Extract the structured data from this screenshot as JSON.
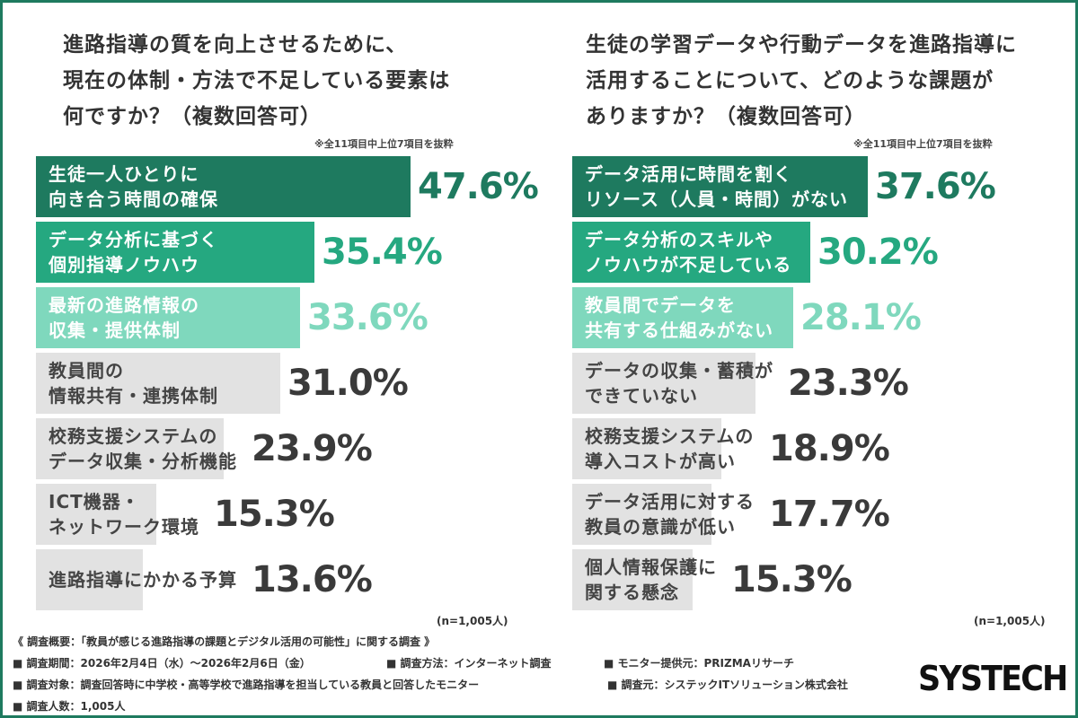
{
  "colors": {
    "border": "#1e7a5f",
    "bar1": "#1e7a5f",
    "bar2": "#25a880",
    "bar3": "#7fd8bd",
    "bar_rest": "#e2e2e2",
    "val1": "#1e7a5f",
    "val2": "#25a880",
    "val3": "#7fd8bd",
    "val_rest": "#3a3a3a",
    "label_light": "#ffffff",
    "label_dark": "#444444"
  },
  "chart_data": [
    {
      "type": "bar",
      "orientation": "horizontal",
      "title": "進路指導の質を向上させるために、\n現在の体制・方法で不足している要素は\n何ですか？（複数回答可）",
      "note": "※全11項目中上位7項目を抜粋",
      "categories": [
        "生徒一人ひとりに\n向き合う時間の確保",
        "データ分析に基づく\n個別指導ノウハウ",
        "最新の進路情報の\n収集・提供体制",
        "教員間の\n情報共有・連携体制",
        "校務支援システムの\nデータ収集・分析機能",
        "ICT機器・\nネットワーク環境",
        "進路指導にかかる予算"
      ],
      "values": [
        47.6,
        35.4,
        33.6,
        31.0,
        23.9,
        15.3,
        13.6
      ],
      "value_labels": [
        "47.6%",
        "35.4%",
        "33.6%",
        "31.0%",
        "23.9%",
        "15.3%",
        "13.6%"
      ],
      "xlim": [
        0,
        100
      ],
      "n_label": "(n=1,005人)"
    },
    {
      "type": "bar",
      "orientation": "horizontal",
      "title": "生徒の学習データや行動データを進路指導に\n活用することについて、どのような課題が\nありますか？（複数回答可）",
      "note": "※全11項目中上位7項目を抜粋",
      "categories": [
        "データ活用に時間を割く\nリソース（人員・時間）がない",
        "データ分析のスキルや\nノウハウが不足している",
        "教員間でデータを\n共有する仕組みがない",
        "データの収集・蓄積が\nできていない",
        "校務支援システムの\n導入コストが高い",
        "データ活用に対する\n教員の意識が低い",
        "個人情報保護に\n関する懸念"
      ],
      "values": [
        37.6,
        30.2,
        28.1,
        23.3,
        18.9,
        17.7,
        15.3
      ],
      "value_labels": [
        "37.6%",
        "30.2%",
        "28.1%",
        "23.3%",
        "18.9%",
        "17.7%",
        "15.3%"
      ],
      "xlim": [
        0,
        100
      ],
      "n_label": "(n=1,005人)"
    }
  ],
  "footer": {
    "overview": "《 調査概要：「教員が感じる進路指導の課題とデジタル活用の可能性」に関する調査 》",
    "period": "■ 調査期間：2026年2月4日（水）〜2026年2月6日（金）",
    "method": "■ 調査方法：インターネット調査",
    "provider": "■ モニター提供元：PRIZMAリサーチ",
    "target": "■ 調査対象：調査回答時に中学校・高等学校で進路指導を担当している教員と回答したモニター",
    "organizer": "■ 調査元：システックITソリューション株式会社",
    "count": "■ 調査人数：1,005人"
  },
  "logo": "SYSTECH"
}
